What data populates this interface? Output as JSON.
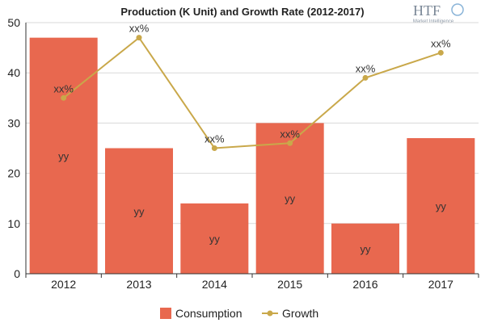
{
  "chart_data": {
    "type": "bar",
    "title": "Production (K Unit) and Growth Rate (2012-2017)",
    "categories": [
      "2012",
      "2013",
      "2014",
      "2015",
      "2016",
      "2017"
    ],
    "ylim": [
      0,
      50
    ],
    "yticks": [
      0,
      10,
      20,
      30,
      40,
      50
    ],
    "grid": true,
    "legend_position": "bottom",
    "series": [
      {
        "name": "Consumption",
        "type": "bar",
        "color": "#e8684f",
        "values": [
          47,
          25,
          14,
          30,
          10,
          27
        ],
        "data_labels": [
          "yy",
          "yy",
          "yy",
          "yy",
          "yy",
          "yy"
        ]
      },
      {
        "name": "Growth",
        "type": "line",
        "color": "#c9a84a",
        "values": [
          35,
          47,
          25,
          26,
          39,
          44
        ],
        "data_labels": [
          "xx%",
          "xx%",
          "xx%",
          "xx%",
          "xx%",
          "xx%"
        ]
      }
    ]
  },
  "logo": {
    "text": "HTF",
    "subtext": "Market Intelligence"
  }
}
